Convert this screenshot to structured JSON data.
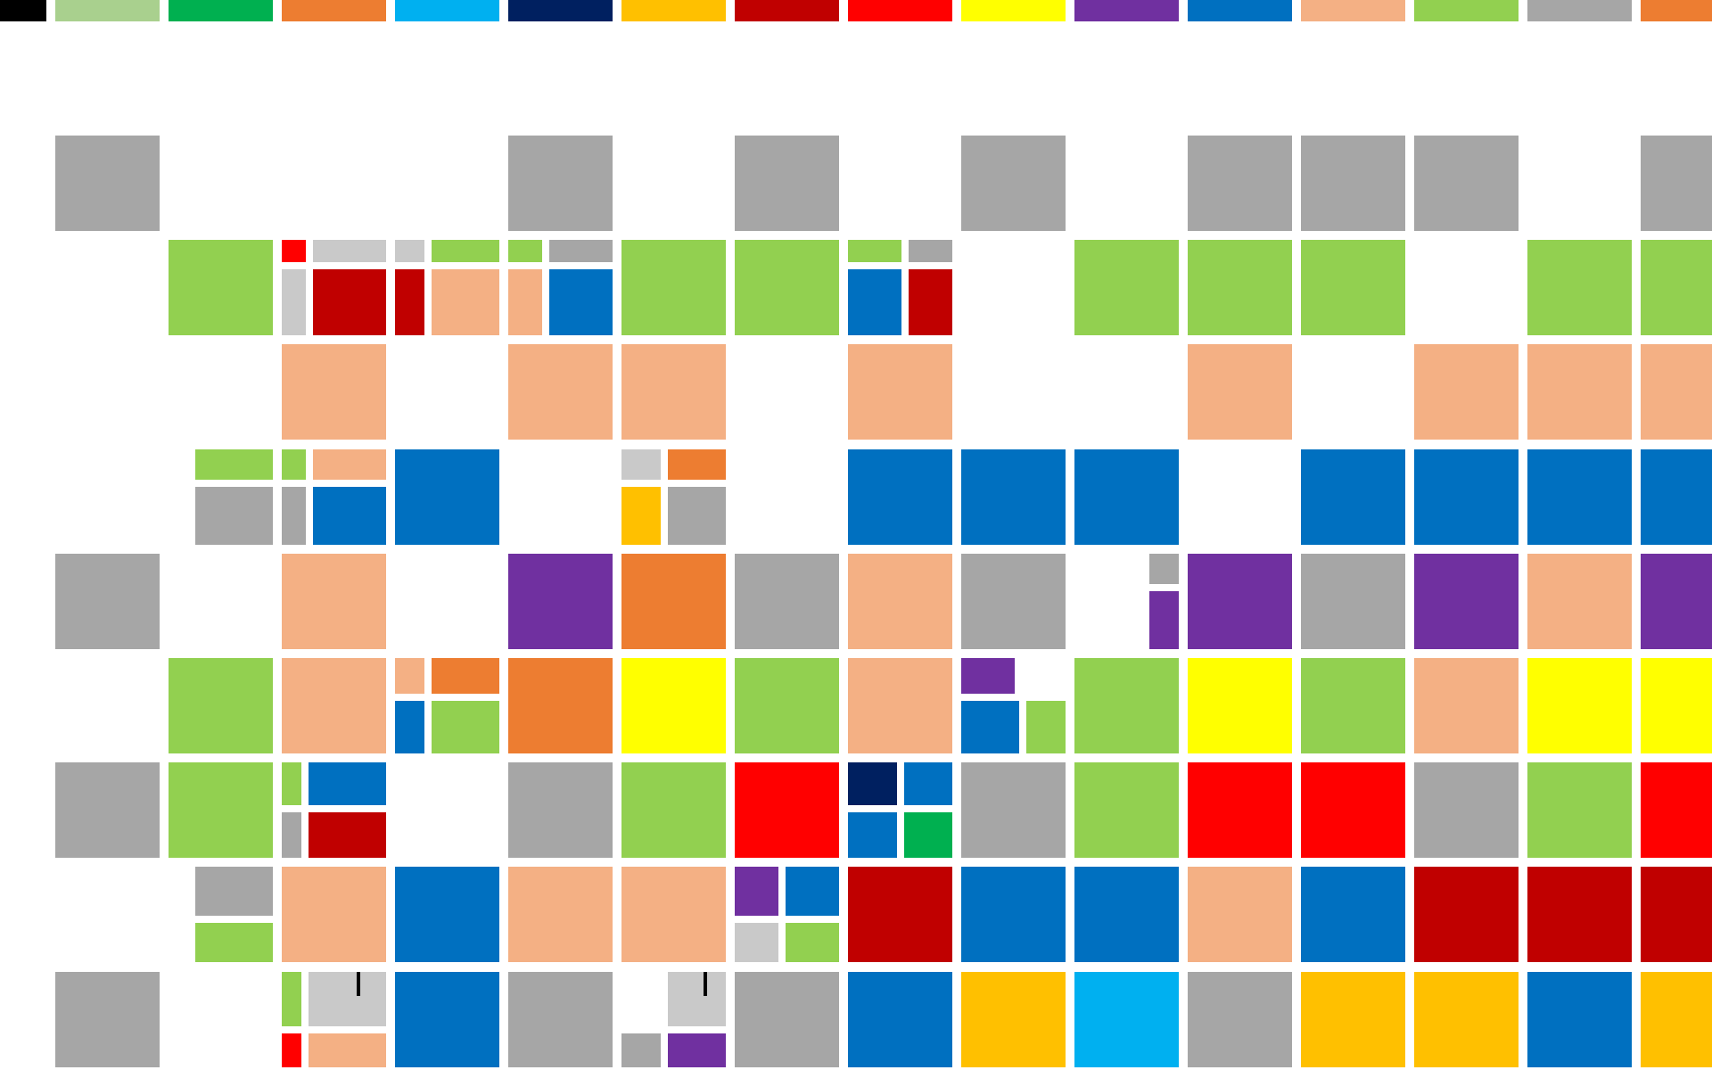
{
  "palette": {
    "black": "#000000",
    "light-green": "#A9D08E",
    "green": "#00B050",
    "orange": "#ED7D31",
    "sky-blue": "#00B0F0",
    "navy": "#002060",
    "gold": "#FFC000",
    "dark-red": "#C00000",
    "red": "#FF0000",
    "yellow": "#FFFF00",
    "purple": "#7030A0",
    "blue": "#0070C0",
    "peach": "#F4B084",
    "lime": "#92D050",
    "gray": "#A6A6A6",
    "light-gray": "#C9C9C9"
  },
  "legend": [
    "black",
    "light-green",
    "green",
    "orange",
    "sky-blue",
    "navy",
    "gold",
    "dark-red",
    "red",
    "yellow",
    "purple",
    "blue",
    "peach",
    "lime",
    "gray",
    "orange"
  ],
  "grid": [
    [
      "gray",
      null,
      null,
      null,
      "gray",
      null,
      "gray",
      null,
      "gray",
      null,
      "gray",
      "gray",
      "gray",
      null,
      "gray"
    ],
    [
      null,
      "lime",
      {
        "split": "v",
        "p": [
          {
            "r": [
              {
                "c": "red",
                "w": 25
              },
              {
                "c": "light-gray",
                "w": 75
              }
            ],
            "h": 25
          },
          {
            "r": [
              {
                "c": "light-gray",
                "w": 25
              },
              {
                "c": "dark-red",
                "w": 75
              }
            ],
            "h": 75
          }
        ]
      },
      {
        "split": "v",
        "p": [
          {
            "r": [
              {
                "c": "light-gray",
                "w": 30
              },
              {
                "c": "lime",
                "w": 70
              }
            ],
            "h": 25
          },
          {
            "r": [
              {
                "c": "dark-red",
                "w": 30
              },
              {
                "c": "peach",
                "w": 70
              }
            ],
            "h": 75
          }
        ]
      },
      {
        "split": "v",
        "p": [
          {
            "r": [
              {
                "c": "lime",
                "w": 35
              },
              {
                "c": "gray",
                "w": 65
              }
            ],
            "h": 25
          },
          {
            "r": [
              {
                "c": "peach",
                "w": 35
              },
              {
                "c": "blue",
                "w": 65
              }
            ],
            "h": 75
          }
        ]
      },
      "lime",
      "lime",
      {
        "split": "v",
        "p": [
          {
            "r": [
              {
                "c": "lime",
                "w": 55
              },
              {
                "c": "gray",
                "w": 45
              }
            ],
            "h": 25
          },
          {
            "r": [
              {
                "c": "blue",
                "w": 55
              },
              {
                "c": "dark-red",
                "w": 45
              }
            ],
            "h": 75
          }
        ]
      },
      null,
      "lime",
      "lime",
      "lime",
      null,
      "lime",
      "lime"
    ],
    [
      null,
      null,
      "peach",
      null,
      "peach",
      "peach",
      null,
      "peach",
      null,
      null,
      "peach",
      null,
      "peach",
      "peach",
      "peach"
    ],
    [
      null,
      {
        "split": "v",
        "p": [
          {
            "r": [
              {
                "c": null,
                "w": 20
              },
              {
                "c": "lime",
                "w": 80
              }
            ],
            "h": 35
          },
          {
            "r": [
              {
                "c": null,
                "w": 20
              },
              {
                "c": "gray",
                "w": 80
              }
            ],
            "h": 65
          }
        ]
      },
      {
        "split": "v",
        "p": [
          {
            "r": [
              {
                "c": "lime",
                "w": 25
              },
              {
                "c": "peach",
                "w": 75
              }
            ],
            "h": 35
          },
          {
            "r": [
              {
                "c": "gray",
                "w": 25
              },
              {
                "c": "blue",
                "w": 75
              }
            ],
            "h": 65
          }
        ]
      },
      "blue",
      null,
      {
        "split": "v",
        "p": [
          {
            "r": [
              {
                "c": "light-gray",
                "w": 40
              },
              {
                "c": "orange",
                "w": 60
              }
            ],
            "h": 35
          },
          {
            "r": [
              {
                "c": "gold",
                "w": 40
              },
              {
                "c": "gray",
                "w": 60
              }
            ],
            "h": 65
          }
        ]
      },
      null,
      "blue",
      "blue",
      "blue",
      null,
      "blue",
      "blue",
      "blue",
      "blue"
    ],
    [
      "gray",
      null,
      "peach",
      null,
      "purple",
      "orange",
      "gray",
      "peach",
      "gray",
      {
        "split": "v",
        "p": [
          {
            "r": [
              {
                "c": null,
                "w": 70
              },
              {
                "c": "gray",
                "w": 30
              }
            ],
            "h": 35
          },
          {
            "r": [
              {
                "c": null,
                "w": 70
              },
              {
                "c": "purple",
                "w": 30
              }
            ],
            "h": 65
          }
        ]
      },
      "purple",
      "gray",
      "purple",
      "peach",
      "purple"
    ],
    [
      null,
      "lime",
      "peach",
      {
        "split": "v",
        "p": [
          {
            "r": [
              {
                "c": "peach",
                "w": 30
              },
              {
                "c": "orange",
                "w": 70
              }
            ],
            "h": 40
          },
          {
            "r": [
              {
                "c": "blue",
                "w": 30
              },
              {
                "c": "lime",
                "w": 70
              }
            ],
            "h": 60
          }
        ]
      },
      "orange",
      "yellow",
      "lime",
      "peach",
      {
        "split": "v",
        "p": [
          {
            "r": [
              {
                "c": "purple",
                "w": 55
              },
              {
                "c": null,
                "w": 45
              }
            ],
            "h": 40
          },
          {
            "r": [
              {
                "c": "blue",
                "w": 60
              },
              {
                "c": "lime",
                "w": 40
              }
            ],
            "h": 60
          }
        ]
      },
      "lime",
      "yellow",
      "lime",
      "peach",
      "yellow",
      "yellow"
    ],
    [
      "gray",
      "lime",
      {
        "split": "v",
        "p": [
          {
            "r": [
              {
                "c": "lime",
                "w": 20
              },
              {
                "c": "blue",
                "w": 80
              }
            ],
            "h": 48
          },
          {
            "r": [
              {
                "c": "gray",
                "w": 20
              },
              {
                "c": "dark-red",
                "w": 80
              }
            ],
            "h": 52
          }
        ]
      },
      null,
      "gray",
      "lime",
      "red",
      {
        "split": "v",
        "p": [
          {
            "r": [
              {
                "c": "navy",
                "w": 50
              },
              {
                "c": "blue",
                "w": 50
              }
            ],
            "h": 48
          },
          {
            "r": [
              {
                "c": "blue",
                "w": 50
              },
              {
                "c": "green",
                "w": 50
              }
            ],
            "h": 52
          }
        ]
      },
      "gray",
      "lime",
      "red",
      "red",
      "gray",
      "lime",
      "red"
    ],
    [
      null,
      {
        "split": "v",
        "p": [
          {
            "r": [
              {
                "c": null,
                "w": 20
              },
              {
                "c": "gray",
                "w": 80
              }
            ],
            "h": 55
          },
          {
            "r": [
              {
                "c": null,
                "w": 20
              },
              {
                "c": "lime",
                "w": 80
              }
            ],
            "h": 45
          }
        ]
      },
      "peach",
      "blue",
      "peach",
      "peach",
      {
        "split": "v",
        "p": [
          {
            "r": [
              {
                "c": "purple",
                "w": 45
              },
              {
                "c": "blue",
                "w": 55
              }
            ],
            "h": 55
          },
          {
            "r": [
              {
                "c": "light-gray",
                "w": 45
              },
              {
                "c": "lime",
                "w": 55
              }
            ],
            "h": 45
          }
        ]
      },
      "dark-red",
      "blue",
      "blue",
      "peach",
      "blue",
      "dark-red",
      "dark-red",
      "dark-red"
    ],
    [
      "gray",
      null,
      {
        "split": "v",
        "p": [
          {
            "r": [
              {
                "c": "lime",
                "w": 20
              },
              {
                "c": "light-gray",
                "w": 80,
                "mark": true
              }
            ],
            "h": 62
          },
          {
            "r": [
              {
                "c": "red",
                "w": 20
              },
              {
                "c": "peach",
                "w": 80
              }
            ],
            "h": 38
          }
        ]
      },
      "blue",
      "gray",
      {
        "split": "v",
        "p": [
          {
            "r": [
              {
                "c": null,
                "w": 40
              },
              {
                "c": "light-gray",
                "w": 60,
                "mark": true
              }
            ],
            "h": 62
          },
          {
            "r": [
              {
                "c": "gray",
                "w": 40
              },
              {
                "c": "purple",
                "w": 60
              }
            ],
            "h": 38
          }
        ]
      },
      "gray",
      "blue",
      "gold",
      "sky-blue",
      "gray",
      "gold",
      "gold",
      "blue",
      "gold"
    ]
  ]
}
